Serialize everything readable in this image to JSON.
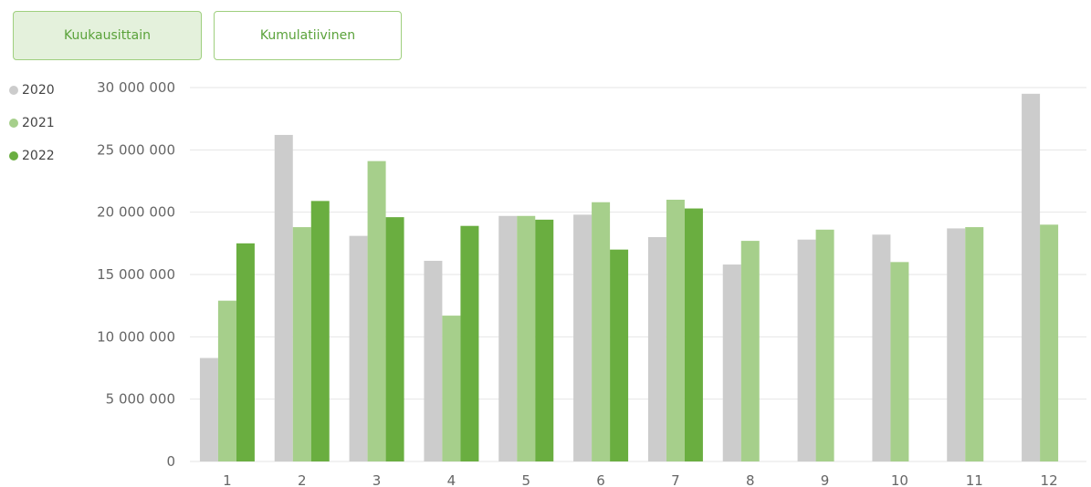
{
  "buttons": {
    "monthly": "Kuukausittain",
    "cumulative": "Kumulatiivinen"
  },
  "colors": {
    "grid": "#e6e6e6",
    "accent": "#5aa23a"
  },
  "chart_data": {
    "type": "bar",
    "categories": [
      "1",
      "2",
      "3",
      "4",
      "5",
      "6",
      "7",
      "8",
      "9",
      "10",
      "11",
      "12"
    ],
    "series": [
      {
        "name": "2020",
        "color": "#cccccc",
        "values": [
          8300000,
          26200000,
          18100000,
          16100000,
          19700000,
          19800000,
          18000000,
          15800000,
          17800000,
          18200000,
          18700000,
          29500000
        ]
      },
      {
        "name": "2021",
        "color": "#a6cf8b",
        "values": [
          12900000,
          18800000,
          24100000,
          11700000,
          19700000,
          20800000,
          21000000,
          17700000,
          18600000,
          16000000,
          18800000,
          19000000
        ]
      },
      {
        "name": "2022",
        "color": "#6aae40",
        "values": [
          17500000,
          20900000,
          19600000,
          18900000,
          19400000,
          17000000,
          20300000,
          null,
          null,
          null,
          null,
          null
        ]
      }
    ],
    "y_ticks": [
      "0",
      "5 000 000",
      "10 000 000",
      "15 000 000",
      "20 000 000",
      "25 000 000",
      "30 000 000"
    ],
    "ylim": [
      0,
      30000000
    ],
    "grid": true,
    "legend_position": "top-left"
  }
}
